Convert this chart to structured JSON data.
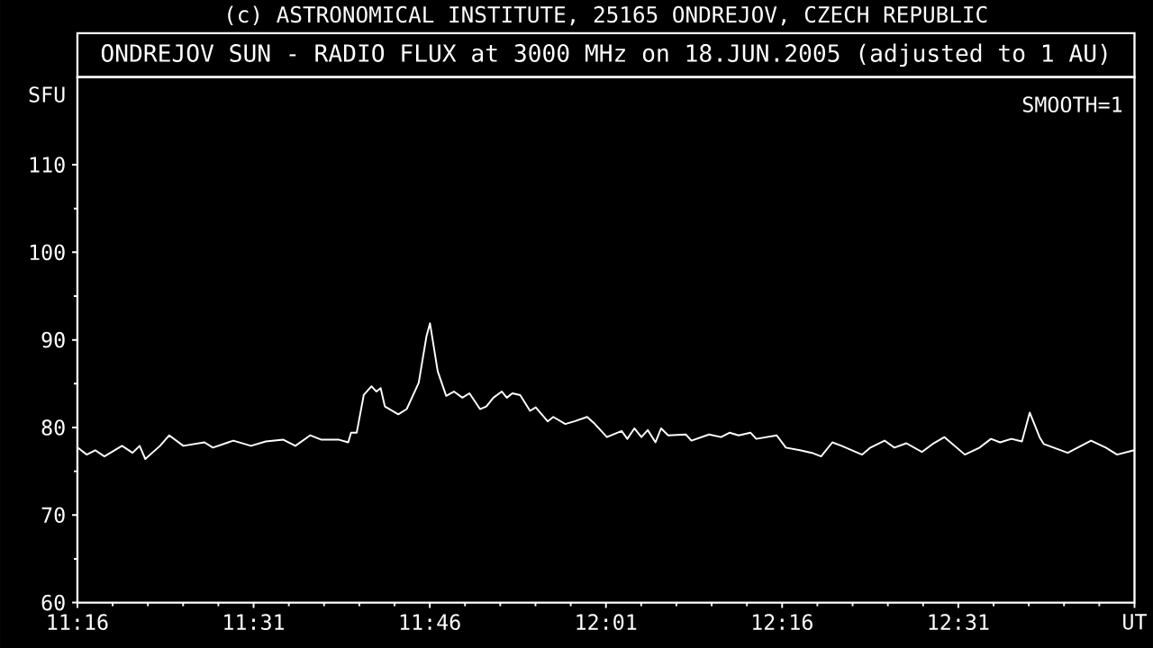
{
  "chart_data": {
    "type": "line",
    "title": "ONDREJOV SUN - RADIO FLUX at 3000 MHz on 18.JUN.2005 (adjusted to 1 AU)",
    "subtitle": "(c) ASTRONOMICAL INSTITUTE, 25165 ONDREJOV, CZECH REPUBLIC",
    "ylabel": "SFU",
    "annotations": [
      "SMOOTH=1"
    ],
    "xlim": [
      11.2667,
      12.7667
    ],
    "ylim": [
      60,
      120
    ],
    "xticks": [
      {
        "value": 11.2667,
        "label": "11:16"
      },
      {
        "value": 11.5167,
        "label": "11:31"
      },
      {
        "value": 11.7667,
        "label": "11:46"
      },
      {
        "value": 12.0167,
        "label": "12:01"
      },
      {
        "value": 12.2667,
        "label": "12:16"
      },
      {
        "value": 12.5167,
        "label": "12:31"
      },
      {
        "value": 12.7667,
        "label": "UT"
      }
    ],
    "yticks": [
      60,
      70,
      80,
      90,
      100,
      110
    ],
    "marker": "none",
    "line_style": "solid",
    "series": [
      {
        "color": "#ffffff",
        "x": [
          11.267,
          11.28,
          11.292,
          11.305,
          11.33,
          11.345,
          11.355,
          11.363,
          11.384,
          11.397,
          11.417,
          11.447,
          11.459,
          11.488,
          11.513,
          11.534,
          11.559,
          11.576,
          11.597,
          11.613,
          11.638,
          11.651,
          11.655,
          11.663,
          11.673,
          11.684,
          11.691,
          11.697,
          11.703,
          11.722,
          11.734,
          11.751,
          11.762,
          11.767,
          11.778,
          11.79,
          11.801,
          11.813,
          11.823,
          11.838,
          11.847,
          11.857,
          11.869,
          11.876,
          11.884,
          11.895,
          11.909,
          11.917,
          11.934,
          11.942,
          11.959,
          11.972,
          11.99,
          12.001,
          12.018,
          12.039,
          12.047,
          12.057,
          12.067,
          12.076,
          12.087,
          12.095,
          12.105,
          12.13,
          12.138,
          12.163,
          12.18,
          12.192,
          12.205,
          12.222,
          12.23,
          12.259,
          12.272,
          12.292,
          12.309,
          12.322,
          12.338,
          12.351,
          12.38,
          12.392,
          12.412,
          12.426,
          12.443,
          12.465,
          12.48,
          12.497,
          12.526,
          12.547,
          12.563,
          12.576,
          12.592,
          12.607,
          12.618,
          12.632,
          12.638,
          12.672,
          12.705,
          12.726,
          12.742,
          12.766
        ],
        "values": [
          77.7,
          76.9,
          77.4,
          76.7,
          77.9,
          77.1,
          77.9,
          76.4,
          77.9,
          79.1,
          77.9,
          78.3,
          77.7,
          78.5,
          77.9,
          78.4,
          78.6,
          77.9,
          79.1,
          78.6,
          78.6,
          78.3,
          79.4,
          79.4,
          83.7,
          84.7,
          84.1,
          84.5,
          82.4,
          81.5,
          82.1,
          85.1,
          90.4,
          91.9,
          86.4,
          83.6,
          84.1,
          83.4,
          83.9,
          82.1,
          82.4,
          83.4,
          84.1,
          83.4,
          83.9,
          83.7,
          81.9,
          82.3,
          80.7,
          81.2,
          80.4,
          80.7,
          81.2,
          80.4,
          78.9,
          79.6,
          78.7,
          79.9,
          78.9,
          79.7,
          78.3,
          79.9,
          79.1,
          79.2,
          78.5,
          79.2,
          78.9,
          79.4,
          79.1,
          79.4,
          78.7,
          79.1,
          77.7,
          77.4,
          77.1,
          76.7,
          78.3,
          77.9,
          76.9,
          77.7,
          78.5,
          77.7,
          78.2,
          77.2,
          78.1,
          78.9,
          76.9,
          77.7,
          78.7,
          78.3,
          78.7,
          78.4,
          81.7,
          78.9,
          78.1,
          77.1,
          78.5,
          77.7,
          76.9,
          77.4
        ]
      }
    ]
  }
}
